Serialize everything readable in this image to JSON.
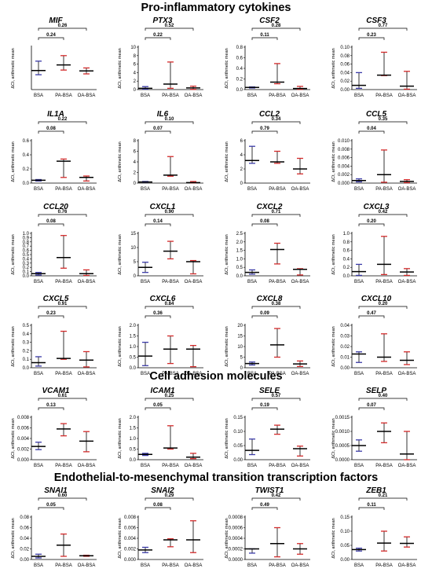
{
  "sections": [
    {
      "title": "Pro-inflammatory cytokines"
    },
    {
      "title": "Cell adhesion molecules"
    },
    {
      "title": "Endothelial-to-mesenchymal transition transcription factors"
    }
  ],
  "colors": {
    "BSA": "#3a3aa8",
    "PA-BSA": "#d42a2a",
    "OA-BSA": "#d42a2a",
    "axis": "#000000",
    "median": "#000000"
  },
  "chart_data": [
    {
      "type": "scatter",
      "title": "MIF",
      "ylabel": "ΔCt, arithmetic mean",
      "categories": [
        "BSA",
        "PA-BSA",
        "OA-BSA"
      ],
      "ylim": [
        0,
        1.0
      ],
      "yticks": [],
      "median": [
        0.45,
        0.58,
        0.44
      ],
      "min": [
        0.35,
        0.46,
        0.37
      ],
      "max": [
        0.67,
        0.8,
        0.51
      ],
      "comparisons": [
        {
          "label": "0.24",
          "pair": [
            0,
            1
          ]
        },
        {
          "label": "0.26",
          "pair": [
            0,
            2
          ]
        }
      ]
    },
    {
      "type": "scatter",
      "title": "PTX3",
      "ylabel": "ΔCt, arithmetic mean",
      "categories": [
        "BSA",
        "PA-BSA",
        "OA-BSA"
      ],
      "ylim": [
        0,
        10
      ],
      "yticks": [
        "0",
        "2",
        "4",
        "6",
        "8",
        "10"
      ],
      "median": [
        0.3,
        1.3,
        0.4
      ],
      "min": [
        0.1,
        0.3,
        0.05
      ],
      "max": [
        0.7,
        6.5,
        0.8
      ],
      "comparisons": [
        {
          "label": "0.22",
          "pair": [
            0,
            1
          ]
        },
        {
          "label": "0.52",
          "pair": [
            0,
            2
          ]
        }
      ]
    },
    {
      "type": "scatter",
      "title": "CSF2",
      "ylabel": "ΔCt, arithmetic mean",
      "categories": [
        "BSA",
        "PA-BSA",
        "OA-BSA"
      ],
      "ylim": [
        0,
        0.8
      ],
      "yticks": [
        "0.0",
        "0.2",
        "0.4",
        "0.6",
        "0.8"
      ],
      "median": [
        0.04,
        0.14,
        0.02
      ],
      "min": [
        0.03,
        0.11,
        0.005
      ],
      "max": [
        0.05,
        0.49,
        0.06
      ],
      "comparisons": [
        {
          "label": "0.11",
          "pair": [
            0,
            1
          ]
        },
        {
          "label": "0.28",
          "pair": [
            0,
            2
          ]
        }
      ]
    },
    {
      "type": "scatter",
      "title": "CSF3",
      "ylabel": "ΔCt, arithmetic mean",
      "categories": [
        "BSA",
        "PA-BSA",
        "OA-BSA"
      ],
      "ylim": [
        0,
        0.1
      ],
      "yticks": [
        "0.00",
        "0.02",
        "0.04",
        "0.06",
        "0.08",
        "0.10"
      ],
      "median": [
        0.01,
        0.034,
        0.008
      ],
      "min": [
        0.003,
        0.033,
        0.001
      ],
      "max": [
        0.04,
        0.088,
        0.043
      ],
      "comparisons": [
        {
          "label": "0.23",
          "pair": [
            0,
            1
          ]
        },
        {
          "label": "0.77",
          "pair": [
            0,
            2
          ]
        }
      ]
    },
    {
      "type": "scatter",
      "title": "IL1A",
      "ylabel": "ΔCt, arithmetic mean",
      "categories": [
        "BSA",
        "PA-BSA",
        "OA-BSA"
      ],
      "ylim": [
        0,
        0.6
      ],
      "yticks": [
        "0.0",
        "0.2",
        "0.4",
        "0.6"
      ],
      "median": [
        0.04,
        0.31,
        0.08
      ],
      "min": [
        0.03,
        0.08,
        0.03
      ],
      "max": [
        0.05,
        0.34,
        0.1
      ],
      "comparisons": [
        {
          "label": "0.08",
          "pair": [
            0,
            1
          ]
        },
        {
          "label": "0.22",
          "pair": [
            0,
            2
          ]
        }
      ]
    },
    {
      "type": "scatter",
      "title": "IL6",
      "ylabel": "ΔCt, arithmetic mean",
      "categories": [
        "BSA",
        "PA-BSA",
        "OA-BSA"
      ],
      "ylim": [
        0,
        8
      ],
      "yticks": [
        "0",
        "2",
        "4",
        "6",
        "8"
      ],
      "median": [
        0.2,
        1.5,
        0.1
      ],
      "min": [
        0.15,
        1.3,
        0.05
      ],
      "max": [
        0.3,
        5.0,
        0.3
      ],
      "comparisons": [
        {
          "label": "0.07",
          "pair": [
            0,
            1
          ]
        },
        {
          "label": "0.10",
          "pair": [
            0,
            2
          ]
        }
      ]
    },
    {
      "type": "scatter",
      "title": "CCL2",
      "ylabel": "ΔCt, arithmetic mean",
      "categories": [
        "BSA",
        "PA-BSA",
        "OA-BSA"
      ],
      "ylim": [
        0,
        6
      ],
      "yticks": [
        "0",
        "2",
        "4",
        "6"
      ],
      "median": [
        3.2,
        3.0,
        2.0
      ],
      "min": [
        2.8,
        2.8,
        1.3
      ],
      "max": [
        5.2,
        4.5,
        3.5
      ],
      "comparisons": [
        {
          "label": "0.79",
          "pair": [
            0,
            1
          ]
        },
        {
          "label": "0.34",
          "pair": [
            0,
            2
          ]
        }
      ]
    },
    {
      "type": "scatter",
      "title": "CCL5",
      "ylabel": "ΔCt, arithmetic mean",
      "categories": [
        "BSA",
        "PA-BSA",
        "OA-BSA"
      ],
      "ylim": [
        0,
        0.01
      ],
      "yticks": [
        "0.000",
        "0.002",
        "0.004",
        "0.006",
        "0.008",
        "0.010"
      ],
      "median": [
        0.0006,
        0.002,
        0.0004
      ],
      "min": [
        0.0003,
        0.0002,
        0.0001
      ],
      "max": [
        0.001,
        0.0078,
        0.0008
      ],
      "comparisons": [
        {
          "label": "0.04",
          "pair": [
            0,
            1
          ]
        },
        {
          "label": "0.35",
          "pair": [
            0,
            2
          ]
        }
      ]
    },
    {
      "type": "scatter",
      "title": "CCL20",
      "ylabel": "ΔCt, arithmetic mean",
      "categories": [
        "BSA",
        "PA-BSA",
        "OA-BSA"
      ],
      "ylim": [
        0,
        1.0
      ],
      "yticks": [
        "0.0",
        "0.1",
        "0.2",
        "0.3",
        "0.4",
        "0.5",
        "0.6",
        "0.7",
        "0.8",
        "0.9",
        "1.0"
      ],
      "median": [
        0.05,
        0.43,
        0.05
      ],
      "min": [
        0.02,
        0.18,
        0.01
      ],
      "max": [
        0.08,
        0.95,
        0.14
      ],
      "comparisons": [
        {
          "label": "0.08",
          "pair": [
            0,
            1
          ]
        },
        {
          "label": "0.76",
          "pair": [
            0,
            2
          ]
        }
      ]
    },
    {
      "type": "scatter",
      "title": "CXCL1",
      "ylabel": "ΔCt, arithmetic mean",
      "categories": [
        "BSA",
        "PA-BSA",
        "OA-BSA"
      ],
      "ylim": [
        0,
        15
      ],
      "yticks": [
        "0",
        "5",
        "10",
        "15"
      ],
      "median": [
        3.0,
        8.7,
        5.0
      ],
      "min": [
        1.2,
        6.0,
        0.7
      ],
      "max": [
        4.8,
        12.2,
        5.4
      ],
      "comparisons": [
        {
          "label": "0.14",
          "pair": [
            0,
            1
          ]
        },
        {
          "label": "0.90",
          "pair": [
            0,
            2
          ]
        }
      ]
    },
    {
      "type": "scatter",
      "title": "CXCL2",
      "ylabel": "ΔCt, arithmetic mean",
      "categories": [
        "BSA",
        "PA-BSA",
        "OA-BSA"
      ],
      "ylim": [
        0,
        2.5
      ],
      "yticks": [
        "0.0",
        "0.5",
        "1.0",
        "1.5",
        "2.0",
        "2.5"
      ],
      "median": [
        0.2,
        1.55,
        0.38
      ],
      "min": [
        0.1,
        0.7,
        0.05
      ],
      "max": [
        0.35,
        1.92,
        0.42
      ],
      "comparisons": [
        {
          "label": "0.08",
          "pair": [
            0,
            1
          ]
        },
        {
          "label": "0.71",
          "pair": [
            0,
            2
          ]
        }
      ]
    },
    {
      "type": "scatter",
      "title": "CXCL3",
      "ylabel": "ΔCt, arithmetic mean",
      "categories": [
        "BSA",
        "PA-BSA",
        "OA-BSA"
      ],
      "ylim": [
        0,
        1.0
      ],
      "yticks": [
        "0.0",
        "0.2",
        "0.4",
        "0.6",
        "0.8",
        "1.0"
      ],
      "median": [
        0.1,
        0.27,
        0.09
      ],
      "min": [
        0.01,
        0.03,
        0.01
      ],
      "max": [
        0.27,
        0.93,
        0.17
      ],
      "comparisons": [
        {
          "label": "0.20",
          "pair": [
            0,
            1
          ]
        },
        {
          "label": "0.42",
          "pair": [
            0,
            2
          ]
        }
      ]
    },
    {
      "type": "scatter",
      "title": "CXCL5",
      "ylabel": "ΔCt, arithmetic mean",
      "categories": [
        "BSA",
        "PA-BSA",
        "OA-BSA"
      ],
      "ylim": [
        0,
        0.5
      ],
      "yticks": [
        "0.0",
        "0.1",
        "0.2",
        "0.3",
        "0.4",
        "0.5"
      ],
      "median": [
        0.06,
        0.11,
        0.09
      ],
      "min": [
        0.02,
        0.1,
        0.01
      ],
      "max": [
        0.13,
        0.43,
        0.19
      ],
      "comparisons": [
        {
          "label": "0.23",
          "pair": [
            0,
            1
          ]
        },
        {
          "label": "0.91",
          "pair": [
            0,
            2
          ]
        }
      ]
    },
    {
      "type": "scatter",
      "title": "CXCL6",
      "ylabel": "ΔCt, arithmetic mean",
      "categories": [
        "BSA",
        "PA-BSA",
        "OA-BSA"
      ],
      "ylim": [
        0,
        2.0
      ],
      "yticks": [
        "0.0",
        "0.5",
        "1.0",
        "1.5",
        "2.0"
      ],
      "median": [
        0.55,
        0.88,
        0.88
      ],
      "min": [
        0.1,
        0.2,
        0.05
      ],
      "max": [
        1.2,
        1.5,
        1.05
      ],
      "comparisons": [
        {
          "label": "0.36",
          "pair": [
            0,
            1
          ]
        },
        {
          "label": "0.84",
          "pair": [
            0,
            2
          ]
        }
      ]
    },
    {
      "type": "scatter",
      "title": "CXCL8",
      "ylabel": "ΔCt, arithmetic mean",
      "categories": [
        "BSA",
        "PA-BSA",
        "OA-BSA"
      ],
      "ylim": [
        0,
        20
      ],
      "yticks": [
        "0",
        "5",
        "10",
        "15",
        "20"
      ],
      "median": [
        2.0,
        10.8,
        1.8
      ],
      "min": [
        1.3,
        5.0,
        0.6
      ],
      "max": [
        2.7,
        18.5,
        3.2
      ],
      "comparisons": [
        {
          "label": "0.09",
          "pair": [
            0,
            1
          ]
        },
        {
          "label": "0.38",
          "pair": [
            0,
            2
          ]
        }
      ]
    },
    {
      "type": "scatter",
      "title": "CXCL10",
      "ylabel": "ΔCt, arithmetic mean",
      "categories": [
        "BSA",
        "PA-BSA",
        "OA-BSA"
      ],
      "ylim": [
        0,
        0.04
      ],
      "yticks": [
        "0.00",
        "0.01",
        "0.02",
        "0.03",
        "0.04"
      ],
      "median": [
        0.013,
        0.01,
        0.007
      ],
      "min": [
        0.005,
        0.006,
        0.003
      ],
      "max": [
        0.015,
        0.032,
        0.015
      ],
      "comparisons": [
        {
          "label": "0.47",
          "pair": [
            0,
            1
          ]
        },
        {
          "label": "0.20",
          "pair": [
            0,
            2
          ]
        }
      ]
    },
    {
      "type": "scatter",
      "title": "VCAM1",
      "ylabel": "ΔCt, arithmetic mean",
      "categories": [
        "BSA",
        "PA-BSA",
        "OA-BSA"
      ],
      "ylim": [
        0,
        0.008
      ],
      "yticks": [
        "0.000",
        "0.002",
        "0.004",
        "0.006",
        "0.008"
      ],
      "median": [
        0.0025,
        0.0058,
        0.0035
      ],
      "min": [
        0.0019,
        0.0045,
        0.0015
      ],
      "max": [
        0.0033,
        0.0068,
        0.0053
      ],
      "comparisons": [
        {
          "label": "0.13",
          "pair": [
            0,
            1
          ]
        },
        {
          "label": "0.61",
          "pair": [
            0,
            2
          ]
        }
      ]
    },
    {
      "type": "scatter",
      "title": "ICAM1",
      "ylabel": "ΔCt, arithmetic mean",
      "categories": [
        "BSA",
        "PA-BSA",
        "OA-BSA"
      ],
      "ylim": [
        0,
        2.0
      ],
      "yticks": [
        "0.0",
        "0.5",
        "1.0",
        "1.5",
        "2.0"
      ],
      "median": [
        0.25,
        0.55,
        0.12
      ],
      "min": [
        0.2,
        0.5,
        0.05
      ],
      "max": [
        0.3,
        1.6,
        0.3
      ],
      "comparisons": [
        {
          "label": "0.05",
          "pair": [
            0,
            1
          ]
        },
        {
          "label": "0.25",
          "pair": [
            0,
            2
          ]
        }
      ]
    },
    {
      "type": "scatter",
      "title": "SELE",
      "ylabel": "ΔCt, arithmetic mean",
      "categories": [
        "BSA",
        "PA-BSA",
        "OA-BSA"
      ],
      "ylim": [
        0,
        0.15
      ],
      "yticks": [
        "0.00",
        "0.05",
        "0.10",
        "0.15"
      ],
      "median": [
        0.033,
        0.108,
        0.039
      ],
      "min": [
        0.018,
        0.09,
        0.013
      ],
      "max": [
        0.073,
        0.122,
        0.048
      ],
      "comparisons": [
        {
          "label": "0.19",
          "pair": [
            0,
            1
          ]
        },
        {
          "label": "0.57",
          "pair": [
            0,
            2
          ]
        }
      ]
    },
    {
      "type": "scatter",
      "title": "SELP",
      "ylabel": "ΔCt, arithmetic mean",
      "categories": [
        "BSA",
        "PA-BSA",
        "OA-BSA"
      ],
      "ylim": [
        0,
        0.0015
      ],
      "yticks": [
        "0.0000",
        "0.0005",
        "0.0010",
        "0.0015"
      ],
      "median": [
        0.0005,
        0.001,
        0.0002
      ],
      "min": [
        0.0003,
        0.0006,
        0.0
      ],
      "max": [
        0.0007,
        0.0013,
        0.001
      ],
      "comparisons": [
        {
          "label": "0.07",
          "pair": [
            0,
            1
          ]
        },
        {
          "label": "0.40",
          "pair": [
            0,
            2
          ]
        }
      ]
    },
    {
      "type": "scatter",
      "title": "SNAI1",
      "ylabel": "ΔCt, arithmetic mean",
      "categories": [
        "BSA",
        "PA-BSA",
        "OA-BSA"
      ],
      "ylim": [
        0,
        0.08
      ],
      "yticks": [
        "0.00",
        "0.02",
        "0.04",
        "0.06",
        "0.08"
      ],
      "median": [
        0.006,
        0.027,
        0.007
      ],
      "min": [
        0.003,
        0.006,
        0.006
      ],
      "max": [
        0.01,
        0.048,
        0.008
      ],
      "comparisons": [
        {
          "label": "0.05",
          "pair": [
            0,
            1
          ]
        },
        {
          "label": "0.60",
          "pair": [
            0,
            2
          ]
        }
      ]
    },
    {
      "type": "scatter",
      "title": "SNAI2",
      "ylabel": "ΔCt, arithmetic mean",
      "categories": [
        "BSA",
        "PA-BSA",
        "OA-BSA"
      ],
      "ylim": [
        0,
        0.008
      ],
      "yticks": [
        "0.000",
        "0.002",
        "0.004",
        "0.006",
        "0.008"
      ],
      "median": [
        0.0018,
        0.0037,
        0.0037
      ],
      "min": [
        0.0013,
        0.0024,
        0.0013
      ],
      "max": [
        0.0023,
        0.0039,
        0.0073
      ],
      "comparisons": [
        {
          "label": "0.08",
          "pair": [
            0,
            1
          ]
        },
        {
          "label": "0.29",
          "pair": [
            0,
            2
          ]
        }
      ]
    },
    {
      "type": "scatter",
      "title": "TWIST1",
      "ylabel": "ΔCt, arithmetic mean",
      "categories": [
        "BSA",
        "PA-BSA",
        "OA-BSA"
      ],
      "ylim": [
        0,
        0.0008
      ],
      "yticks": [
        "0.0000",
        "0.0002",
        "0.0004",
        "0.0006",
        "0.0008"
      ],
      "median": [
        0.0002,
        0.0003,
        0.0002
      ],
      "min": [
        0.00012,
        5e-05,
        0.0001
      ],
      "max": [
        0.0002,
        0.0006,
        0.0003
      ],
      "comparisons": [
        {
          "label": "0.49",
          "pair": [
            0,
            1
          ]
        },
        {
          "label": "0.42",
          "pair": [
            0,
            2
          ]
        }
      ]
    },
    {
      "type": "scatter",
      "title": "ZEB1",
      "ylabel": "ΔCt, arithmetic mean",
      "categories": [
        "BSA",
        "PA-BSA",
        "OA-BSA"
      ],
      "ylim": [
        0,
        0.15
      ],
      "yticks": [
        "0.00",
        "0.05",
        "0.10",
        "0.15"
      ],
      "median": [
        0.035,
        0.058,
        0.057
      ],
      "min": [
        0.03,
        0.03,
        0.044
      ],
      "max": [
        0.04,
        0.1,
        0.08
      ],
      "comparisons": [
        {
          "label": "0.11",
          "pair": [
            0,
            1
          ]
        },
        {
          "label": "0.21",
          "pair": [
            0,
            2
          ]
        }
      ]
    }
  ]
}
